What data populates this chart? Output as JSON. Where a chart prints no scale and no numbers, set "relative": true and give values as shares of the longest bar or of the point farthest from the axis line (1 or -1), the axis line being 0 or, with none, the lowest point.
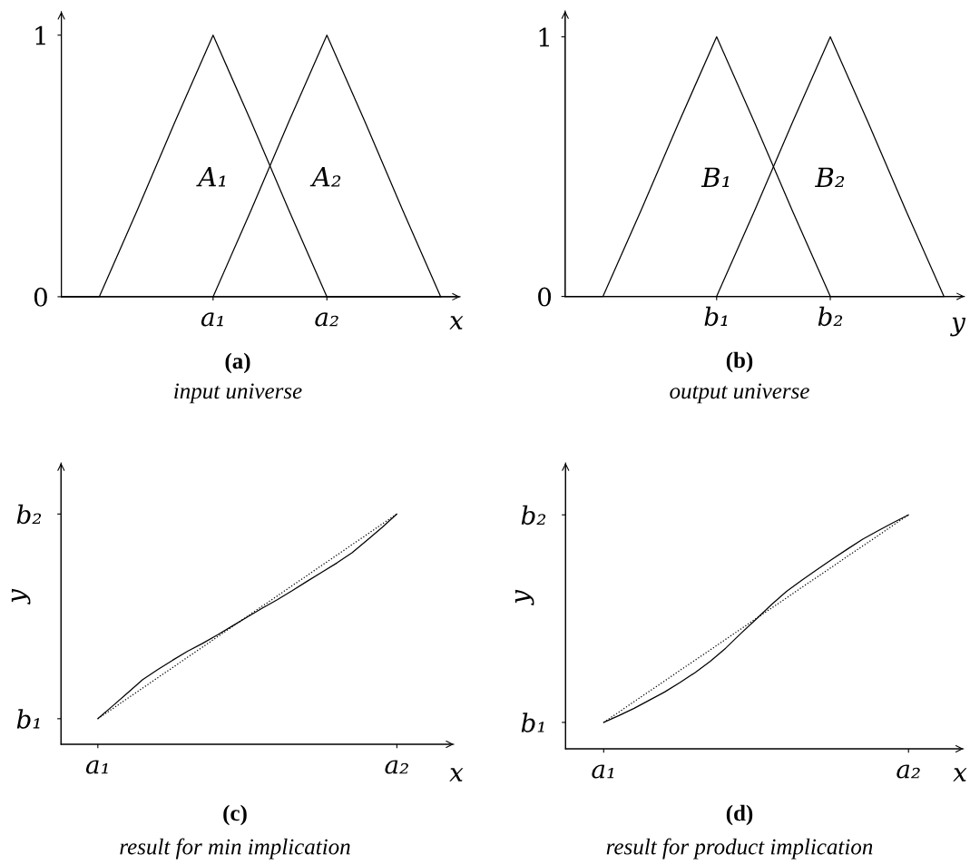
{
  "chart_data": [
    {
      "type": "line",
      "title": "(a)",
      "subtitle": "input universe",
      "xlabel": "x",
      "ylim": [
        0,
        1.09
      ],
      "yticks": [
        0,
        1
      ],
      "categories": [
        null,
        null,
        null,
        null,
        "a₁",
        null,
        null,
        "a₂",
        null,
        null,
        null
      ],
      "annotations": [
        "A₁",
        "A₂"
      ],
      "series": [
        {
          "color": "#000000",
          "line_style": "solid",
          "values": [
            0,
            0,
            0.33,
            0.67,
            1,
            0.67,
            0.33,
            0,
            0,
            0,
            0
          ]
        },
        {
          "color": "#000000",
          "line_style": "solid",
          "values": [
            null,
            null,
            null,
            null,
            0,
            0.33,
            0.67,
            1,
            0.67,
            0.33,
            0
          ]
        }
      ]
    },
    {
      "type": "line",
      "title": "(b)",
      "subtitle": "output universe",
      "xlabel": "y",
      "ylim": [
        0,
        1.1
      ],
      "yticks": [
        0,
        1
      ],
      "categories": [
        null,
        null,
        null,
        null,
        "b₁",
        null,
        null,
        "b₂",
        null,
        null,
        null
      ],
      "annotations": [
        "B₁",
        "B₂"
      ],
      "series": [
        {
          "color": "#000000",
          "line_style": "solid",
          "values": [
            0,
            0,
            0.33,
            0.67,
            1,
            0.67,
            0.33,
            0,
            0,
            0,
            0
          ]
        },
        {
          "color": "#000000",
          "line_style": "solid",
          "values": [
            null,
            null,
            null,
            null,
            0,
            0.33,
            0.67,
            1,
            0.67,
            0.33,
            0
          ]
        }
      ]
    },
    {
      "type": "line",
      "title": "(c)",
      "subtitle": "result for min implication",
      "xlabel": "x",
      "ylabel": "y",
      "relative": true,
      "annotations": [
        "b₁",
        "b₂"
      ],
      "categories": [
        "a₁",
        null,
        null,
        null,
        null,
        null,
        null,
        null,
        null,
        null,
        null,
        null,
        null,
        null,
        null,
        null,
        null,
        null,
        null,
        null,
        "a₂"
      ],
      "series": [
        {
          "color": "#000000",
          "line_style": "solid",
          "values": [
            0.111,
            0.167,
            0.224,
            0.281,
            0.324,
            0.365,
            0.404,
            0.438,
            0.475,
            0.514,
            0.553,
            0.591,
            0.628,
            0.667,
            0.708,
            0.748,
            0.788,
            0.832,
            0.886,
            0.941,
            1
          ]
        },
        {
          "color": "#000000",
          "line_style": "dotted",
          "values": [
            0.111,
            0.155,
            0.2,
            0.244,
            0.289,
            0.333,
            0.378,
            0.422,
            0.467,
            0.511,
            0.556,
            0.6,
            0.644,
            0.689,
            0.733,
            0.778,
            0.822,
            0.867,
            0.911,
            0.956,
            1
          ]
        }
      ]
    },
    {
      "type": "line",
      "title": "(d)",
      "subtitle": "result for product implication",
      "xlabel": "x",
      "ylabel": "y",
      "relative": true,
      "annotations": [
        "b₁",
        "b₂"
      ],
      "categories": [
        "a₁",
        null,
        null,
        null,
        null,
        null,
        null,
        null,
        null,
        null,
        null,
        null,
        null,
        null,
        null,
        null,
        null,
        null,
        null,
        null,
        "a₂"
      ],
      "series": [
        {
          "color": "#000000",
          "line_style": "solid",
          "values": [
            0.113,
            0.142,
            0.173,
            0.208,
            0.243,
            0.283,
            0.326,
            0.374,
            0.43,
            0.493,
            0.554,
            0.616,
            0.673,
            0.721,
            0.766,
            0.811,
            0.854,
            0.896,
            0.932,
            0.967,
            1
          ]
        },
        {
          "color": "#000000",
          "line_style": "dotted",
          "values": [
            0.113,
            0.157,
            0.202,
            0.246,
            0.29,
            0.335,
            0.379,
            0.423,
            0.468,
            0.512,
            0.557,
            0.601,
            0.645,
            0.69,
            0.734,
            0.778,
            0.823,
            0.867,
            0.911,
            0.956,
            1
          ]
        }
      ]
    }
  ]
}
